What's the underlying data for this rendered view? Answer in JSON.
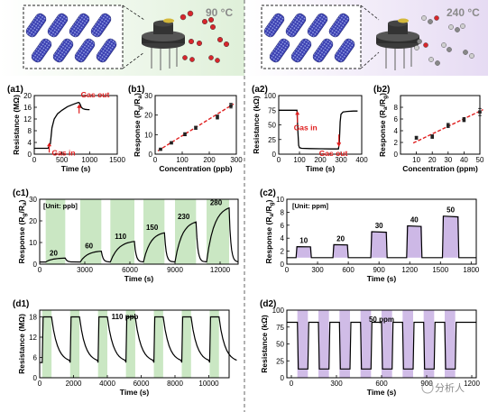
{
  "header": {
    "left_temp": "90 °C",
    "right_temp": "240 °C"
  },
  "colors": {
    "green_band": "#c7e6c0",
    "purple_band": "#cdb8e6",
    "fit_line": "#e02020",
    "trace": "#000000",
    "header_left_bg": "#e9f4e6",
    "header_right_bg": "#ede6f6"
  },
  "watermark": "分析人",
  "chart_data": [
    {
      "id": "a1",
      "type": "line",
      "panel_label": "(a1)",
      "xlabel": "Time (s)",
      "ylabel": "Resistance (MΩ)",
      "xlim": [
        0,
        1500
      ],
      "ylim": [
        0,
        20
      ],
      "xticks": [
        0,
        500,
        1000,
        1500
      ],
      "yticks": [
        0,
        4,
        8,
        12,
        16,
        20
      ],
      "x": [
        0,
        100,
        200,
        250,
        290,
        320,
        360,
        420,
        500,
        600,
        700,
        790,
        810,
        830,
        850,
        880,
        920,
        970,
        1000
      ],
      "y": [
        2.0,
        2.0,
        2.0,
        2.0,
        3.5,
        9.0,
        12.0,
        13.8,
        15.0,
        16.2,
        17.0,
        17.6,
        17.6,
        17.0,
        16.0,
        15.5,
        15.3,
        15.2,
        15.2
      ],
      "annotations": [
        {
          "text": "Gas in",
          "x": 270,
          "y": 3.0
        },
        {
          "text": "Gas out",
          "x": 810,
          "y": 17.6
        }
      ]
    },
    {
      "id": "b1",
      "type": "scatter",
      "panel_label": "(b1)",
      "xlabel": "Concentration (ppb)",
      "ylabel": "Response (Rg/Ra)",
      "xlim": [
        0,
        300
      ],
      "ylim": [
        0,
        30
      ],
      "xticks": [
        0,
        100,
        200,
        300
      ],
      "yticks": [
        0,
        10,
        20,
        30
      ],
      "x": [
        20,
        60,
        110,
        150,
        230,
        280
      ],
      "y": [
        2.5,
        5.8,
        10.2,
        13.5,
        19.0,
        24.8
      ],
      "err": [
        0.4,
        0.6,
        0.8,
        0.8,
        1.0,
        1.2
      ],
      "fit": [
        [
          10,
          1.7
        ],
        [
          290,
          25.7
        ]
      ]
    },
    {
      "id": "a2",
      "type": "line",
      "panel_label": "(a2)",
      "xlabel": "Time (s)",
      "ylabel": "Resistance (kΩ)",
      "xlim": [
        0,
        400
      ],
      "ylim": [
        0,
        100
      ],
      "xticks": [
        0,
        100,
        200,
        300,
        400
      ],
      "yticks": [
        0,
        25,
        50,
        75,
        100
      ],
      "x": [
        0,
        60,
        88,
        92,
        96,
        100,
        110,
        150,
        200,
        250,
        288,
        292,
        296,
        300,
        310,
        330,
        360,
        380
      ],
      "y": [
        75,
        75,
        75,
        40,
        15,
        11,
        10,
        9.5,
        9.2,
        9.0,
        9.0,
        20,
        55,
        68,
        72,
        73,
        73.5,
        73.5
      ],
      "annotations": [
        {
          "text": "Gas in",
          "x": 90,
          "y": 75
        },
        {
          "text": "Gas out",
          "x": 290,
          "y": 9
        }
      ]
    },
    {
      "id": "b2",
      "type": "scatter",
      "panel_label": "(b2)",
      "xlabel": "Concentration (ppm)",
      "ylabel": "Response (Ra/Rg)",
      "xlim": [
        0,
        50
      ],
      "ylim": [
        0,
        10
      ],
      "xticks": [
        10,
        20,
        30,
        40,
        50
      ],
      "yticks": [
        0,
        2,
        4,
        6,
        8
      ],
      "x": [
        10,
        20,
        30,
        40,
        50
      ],
      "y": [
        2.8,
        3.0,
        4.9,
        5.9,
        7.2
      ],
      "err": [
        0.25,
        0.3,
        0.35,
        0.35,
        0.6
      ],
      "fit": [
        [
          8,
          1.9
        ],
        [
          52,
          7.6
        ]
      ]
    },
    {
      "id": "c1",
      "type": "line",
      "panel_label": "(c1)",
      "unit_label": "[Unit: ppb]",
      "xlabel": "Time (s)",
      "ylabel": "Response (Rg/Ra)",
      "xlim": [
        0,
        13200
      ],
      "ylim": [
        0,
        30
      ],
      "xticks": [
        0,
        3000,
        6000,
        9000,
        12000
      ],
      "yticks": [
        0,
        10,
        20,
        30
      ],
      "pulses": [
        {
          "conc": "20",
          "start": 400,
          "end": 1700,
          "peak": 2.8
        },
        {
          "conc": "60",
          "start": 2700,
          "end": 4100,
          "peak": 6.0
        },
        {
          "conc": "110",
          "start": 4700,
          "end": 6300,
          "peak": 10.5
        },
        {
          "conc": "150",
          "start": 6900,
          "end": 8300,
          "peak": 14.5
        },
        {
          "conc": "230",
          "start": 9000,
          "end": 10400,
          "peak": 19.5
        },
        {
          "conc": "280",
          "start": 11100,
          "end": 12600,
          "peak": 26.0
        }
      ]
    },
    {
      "id": "c2",
      "type": "line",
      "panel_label": "(c2)",
      "unit_label": "[Unit: ppm]",
      "xlabel": "Time (s)",
      "ylabel": "Response (Ra/Rg)",
      "xlim": [
        0,
        1850
      ],
      "ylim": [
        0,
        10
      ],
      "xticks": [
        0,
        300,
        600,
        900,
        1200,
        1500,
        1800
      ],
      "yticks": [
        0,
        2,
        4,
        6,
        8,
        10
      ],
      "pulses": [
        {
          "conc": "10",
          "start": 90,
          "end": 240,
          "peak": 2.7
        },
        {
          "conc": "20",
          "start": 450,
          "end": 600,
          "peak": 3.0
        },
        {
          "conc": "30",
          "start": 820,
          "end": 980,
          "peak": 5.0
        },
        {
          "conc": "40",
          "start": 1170,
          "end": 1320,
          "peak": 5.9
        },
        {
          "conc": "50",
          "start": 1520,
          "end": 1680,
          "peak": 7.4
        }
      ]
    },
    {
      "id": "d1",
      "type": "line",
      "panel_label": "(d1)",
      "inline_label": "110 ppb",
      "xlabel": "Time (s)",
      "ylabel": "Resistance (MΩ)",
      "xlim": [
        0,
        11200
      ],
      "ylim": [
        0,
        20
      ],
      "xticks": [
        0,
        2000,
        4000,
        6000,
        8000,
        10000
      ],
      "yticks": [
        0,
        6,
        12,
        18
      ],
      "baseline": 4.5,
      "peak": 18.0,
      "pulses": [
        {
          "start": 150,
          "end": 700
        },
        {
          "start": 1800,
          "end": 2350
        },
        {
          "start": 3450,
          "end": 4000
        },
        {
          "start": 5100,
          "end": 5650
        },
        {
          "start": 6750,
          "end": 7300
        },
        {
          "start": 8400,
          "end": 8950
        },
        {
          "start": 10050,
          "end": 10600
        }
      ]
    },
    {
      "id": "d2",
      "type": "line",
      "panel_label": "(d2)",
      "inline_label": "50 ppm",
      "xlabel": "Time (s)",
      "ylabel": "Resistance (kΩ)",
      "xlim": [
        -30,
        1230
      ],
      "ylim": [
        0,
        100
      ],
      "xticks": [
        0,
        300,
        600,
        900,
        1200
      ],
      "yticks": [
        0,
        25,
        50,
        75,
        100
      ],
      "baseline": 82,
      "low": 13,
      "pulses": [
        {
          "start": 40,
          "end": 110
        },
        {
          "start": 180,
          "end": 250
        },
        {
          "start": 320,
          "end": 390
        },
        {
          "start": 460,
          "end": 530
        },
        {
          "start": 600,
          "end": 670
        },
        {
          "start": 740,
          "end": 810
        },
        {
          "start": 880,
          "end": 950
        },
        {
          "start": 1020,
          "end": 1090
        }
      ]
    }
  ]
}
